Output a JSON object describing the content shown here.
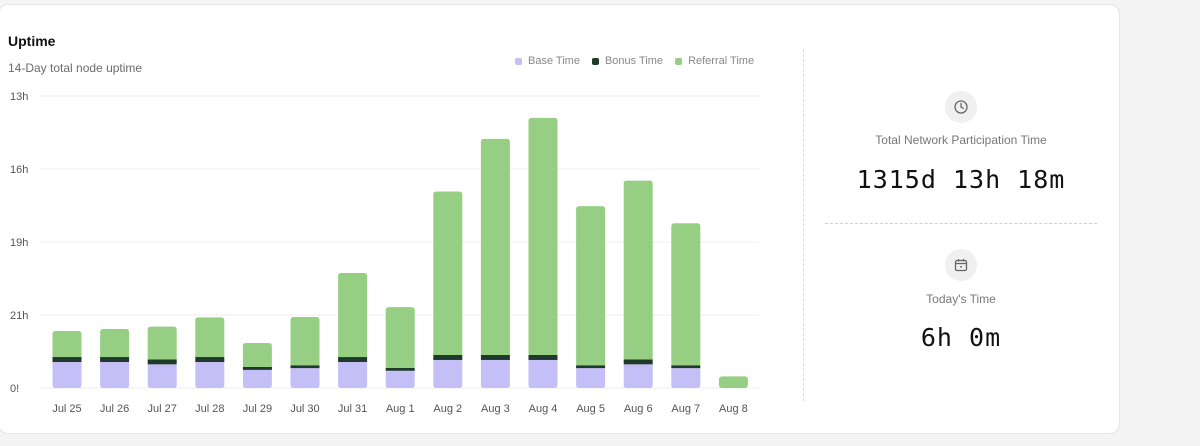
{
  "header": {
    "title": "Uptime",
    "subtitle": "14-Day total node uptime"
  },
  "legend": [
    {
      "label": "Base Time",
      "color": "#c4bff6"
    },
    {
      "label": "Bonus Time",
      "color": "#1f3a2a"
    },
    {
      "label": "Referral Time",
      "color": "#96cf84"
    }
  ],
  "chart_data": {
    "type": "bar",
    "stacked": true,
    "categories": [
      "Jul 25",
      "Jul 26",
      "Jul 27",
      "Jul 28",
      "Jul 29",
      "Jul 30",
      "Jul 31",
      "Aug 1",
      "Aug 2",
      "Aug 3",
      "Aug 4",
      "Aug 5",
      "Aug 6",
      "Aug 7",
      "Aug 8"
    ],
    "y_tick_labels": [
      "0!",
      "21h",
      "19h",
      "16h",
      "13h"
    ],
    "grid": true,
    "legend_position": "top-right",
    "series": [
      {
        "name": "Base Time",
        "values": [
          0.89,
          0.89,
          0.81,
          0.89,
          0.62,
          0.68,
          0.89,
          0.59,
          0.96,
          0.96,
          0.96,
          0.68,
          0.81,
          0.68,
          0.0
        ]
      },
      {
        "name": "Bonus Time",
        "values": [
          0.17,
          0.17,
          0.17,
          0.17,
          0.1,
          0.1,
          0.17,
          0.1,
          0.17,
          0.17,
          0.17,
          0.1,
          0.17,
          0.1,
          0.0
        ]
      },
      {
        "name": "Referral Time",
        "values": [
          0.89,
          0.96,
          1.12,
          1.36,
          0.82,
          1.65,
          2.88,
          2.08,
          5.6,
          7.4,
          8.12,
          5.45,
          6.12,
          4.86,
          0.4
        ]
      }
    ]
  },
  "stats": {
    "total_label": "Total Network Participation Time",
    "total_value": "1315d 13h 18m",
    "today_label": "Today's Time",
    "today_value": "6h 0m"
  }
}
